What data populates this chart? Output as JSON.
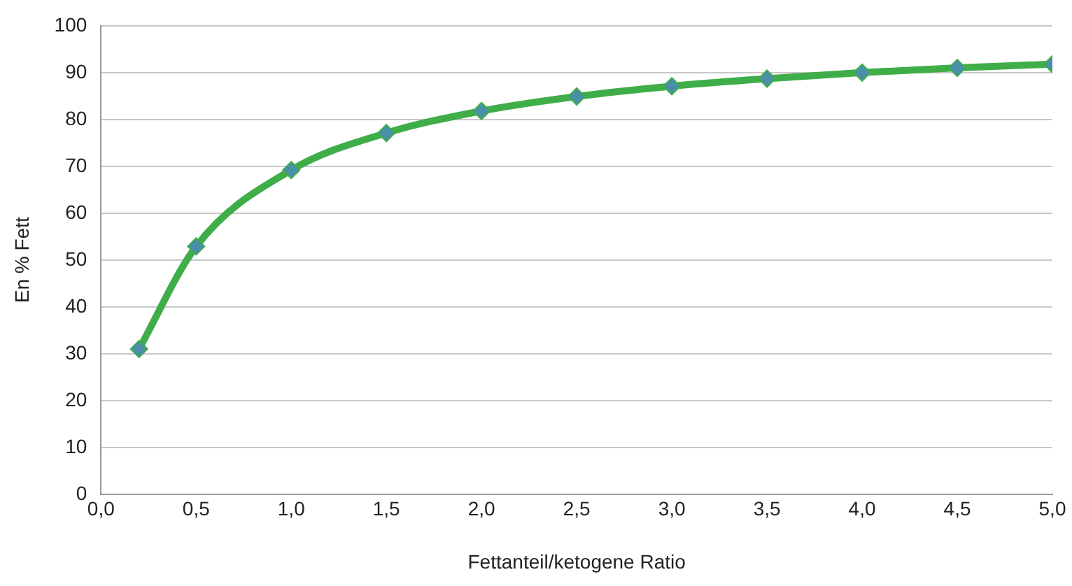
{
  "chart_data": {
    "type": "line",
    "xlabel": "Fettanteil/ketogene Ratio",
    "ylabel": "En % Fett",
    "x": [
      0.2,
      0.5,
      1.0,
      1.5,
      2.0,
      2.5,
      3.0,
      3.5,
      4.0,
      4.5,
      5.0
    ],
    "series": [
      {
        "color": "#3fae49",
        "colors": [
          "#4a8fa8",
          "#4a8fa8",
          "#4a8fa8",
          "#4a8fa8",
          "#4a8fa8",
          "#4a8fa8",
          "#4a8fa8",
          "#4a8fa8",
          "#4a8fa8",
          "#4a8fa8",
          "#4a8fa8"
        ],
        "values": [
          31.0,
          52.9,
          69.2,
          77.1,
          81.8,
          84.9,
          87.1,
          88.7,
          90.0,
          91.0,
          91.8
        ]
      }
    ],
    "xlim": [
      0,
      5
    ],
    "xticks": [
      {
        "value": 0,
        "label": "0,0"
      },
      {
        "value": 0.5,
        "label": "0,5"
      },
      {
        "value": 1,
        "label": "1,0"
      },
      {
        "value": 1.5,
        "label": "1,5"
      },
      {
        "value": 2,
        "label": "2,0"
      },
      {
        "value": 2.5,
        "label": "2,5"
      },
      {
        "value": 3,
        "label": "3,0"
      },
      {
        "value": 3.5,
        "label": "3,5"
      },
      {
        "value": 4,
        "label": "4,0"
      },
      {
        "value": 4.5,
        "label": "4,5"
      },
      {
        "value": 5,
        "label": "5,0"
      }
    ],
    "ylim": [
      0,
      100
    ],
    "yticks": [
      0,
      10,
      20,
      30,
      40,
      50,
      60,
      70,
      80,
      90,
      100
    ],
    "grid": "y",
    "legend": false,
    "marker": "diamond",
    "line_style": "solid"
  }
}
